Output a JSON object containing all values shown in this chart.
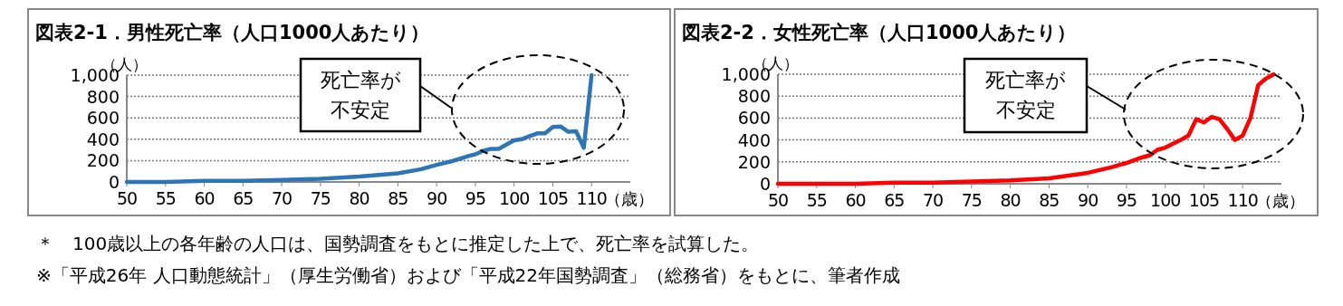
{
  "chart_data": [
    {
      "type": "line",
      "title": "図表2-1．男性死亡率（人口1000人あたり）",
      "xlabel": "（歳）",
      "ylabel": "（人）",
      "xlim": [
        50,
        115
      ],
      "xticks": [
        50,
        55,
        60,
        65,
        70,
        75,
        80,
        85,
        90,
        95,
        100,
        105,
        110
      ],
      "ylim": [
        0,
        1000
      ],
      "yticks": [
        0,
        200,
        400,
        600,
        800,
        {
          "value": 1000,
          "label": "1,000"
        }
      ],
      "grid": "y",
      "marker": "none",
      "line_style": "solid",
      "x": [
        50,
        55,
        60,
        65,
        70,
        75,
        80,
        85,
        88,
        90,
        92,
        94,
        95,
        96,
        97,
        98,
        99,
        100,
        101,
        102,
        103,
        104,
        105,
        106,
        107,
        108,
        109,
        110
      ],
      "series": [
        {
          "color": "#2e75b6",
          "values": [
            0,
            0,
            10,
            10,
            20,
            30,
            50,
            80,
            120,
            160,
            195,
            240,
            260,
            290,
            310,
            310,
            350,
            390,
            400,
            430,
            455,
            455,
            515,
            520,
            470,
            475,
            320,
            1000
          ]
        }
      ],
      "annotations": [
        "死亡率が不安定",
        "＊　100歳以上の各年齢の人口は、国勢調査をもとに推定した上で、死亡率を試算した。",
        "※「平成26年 人口動態統計」（厚生労働省）および「平成22年国勢調査」（総務省）をもとに、筆者作成"
      ]
    },
    {
      "type": "line",
      "title": "図表2-2．女性死亡率（人口1000人あたり）",
      "xlabel": "（歳）",
      "ylabel": "（人）",
      "xlim": [
        50,
        115
      ],
      "xticks": [
        50,
        55,
        60,
        65,
        70,
        75,
        80,
        85,
        90,
        95,
        100,
        105,
        110
      ],
      "ylim": [
        0,
        1000
      ],
      "yticks": [
        0,
        200,
        400,
        600,
        800,
        {
          "value": 1000,
          "label": "1,000"
        }
      ],
      "grid": "y",
      "marker": "none",
      "line_style": "solid",
      "x": [
        50,
        55,
        60,
        65,
        70,
        75,
        80,
        85,
        90,
        93,
        94,
        95,
        96,
        97,
        98,
        99,
        100,
        101,
        102,
        103,
        104,
        105,
        106,
        107,
        108,
        109,
        110,
        111,
        112,
        113,
        114
      ],
      "series": [
        {
          "color": "#ff0000",
          "values": [
            0,
            0,
            0,
            10,
            10,
            20,
            30,
            50,
            100,
            150,
            170,
            190,
            215,
            240,
            260,
            310,
            330,
            365,
            400,
            440,
            590,
            560,
            610,
            590,
            500,
            400,
            440,
            600,
            900,
            960,
            1000
          ]
        }
      ],
      "annotations": [
        "死亡率が不安定"
      ]
    }
  ]
}
